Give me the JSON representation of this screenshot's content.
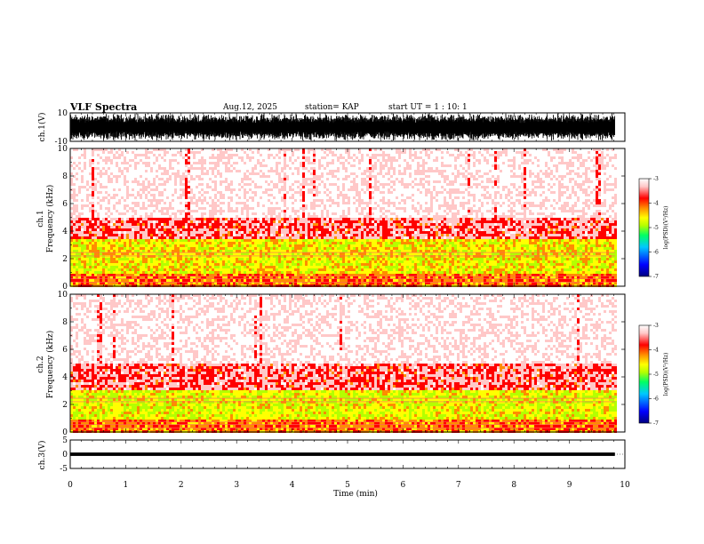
{
  "header": {
    "title": "VLF Spectra",
    "date": "Aug.12, 2025",
    "station": "station= KAP",
    "start": "start  UT =   1 : 10: 1"
  },
  "colorbar": {
    "label": "log(PSD)(V²/Hz)",
    "ticks": [
      "-3",
      "-4",
      "-5",
      "-6",
      "-7"
    ],
    "range": [
      -7,
      -3
    ],
    "colors": [
      "#000080",
      "#0000ff",
      "#00c8ff",
      "#00ff64",
      "#b4ff00",
      "#ffff00",
      "#ff8c00",
      "#ff0000",
      "#ffc8c8",
      "#ffffff"
    ]
  },
  "chart_data": [
    {
      "type": "line",
      "name": "ch1-waveform",
      "ylabel": "ch.1(V)",
      "ylim": [
        -10,
        10
      ],
      "yticks": [
        "10",
        "-10"
      ],
      "xlim": [
        0,
        10
      ],
      "data_extent": [
        0,
        9.82
      ],
      "description_values": {
        "mean": 0,
        "typical_min": -10,
        "typical_max": 10
      }
    },
    {
      "type": "heatmap",
      "name": "ch1-spectrogram",
      "ylabel_top": "ch.1",
      "ylabel": "Frequency  (kHz)",
      "ylim": [
        0,
        10
      ],
      "yticks": [
        "0",
        "2",
        "4",
        "6",
        "8",
        "10"
      ],
      "xlim": [
        0,
        10
      ],
      "data_extent": [
        0,
        9.82
      ],
      "bands": [
        {
          "f_low": 0,
          "f_high": 1,
          "log_psd": -4.3
        },
        {
          "f_low": 1,
          "f_high": 3.5,
          "log_psd": -4.8
        },
        {
          "f_low": 3.5,
          "f_high": 5,
          "log_psd": -3.8
        },
        {
          "f_low": 5,
          "f_high": 10,
          "log_psd": -3.3
        }
      ]
    },
    {
      "type": "heatmap",
      "name": "ch2-spectrogram",
      "ylabel_top": "ch.2",
      "ylabel": "Frequency  (kHz)",
      "ylim": [
        0,
        10
      ],
      "yticks": [
        "0",
        "2",
        "4",
        "6",
        "8",
        "10"
      ],
      "xlim": [
        0,
        10
      ],
      "data_extent": [
        0,
        9.82
      ],
      "bands": [
        {
          "f_low": 0,
          "f_high": 1,
          "log_psd": -4.3
        },
        {
          "f_low": 1,
          "f_high": 3.2,
          "log_psd": -4.9
        },
        {
          "f_low": 3.2,
          "f_high": 5,
          "log_psd": -3.8
        },
        {
          "f_low": 5,
          "f_high": 10,
          "log_psd": -3.3
        }
      ]
    },
    {
      "type": "line",
      "name": "ch3-waveform",
      "ylabel": "ch.3(V)",
      "ylim": [
        -5,
        5
      ],
      "yticks": [
        "5",
        "0",
        "-5"
      ],
      "xlim": [
        0,
        10
      ],
      "data_extent": [
        0,
        9.82
      ],
      "level": 0,
      "amplitude": 0.6
    }
  ],
  "xaxis": {
    "label": "Time  (min)",
    "ticks": [
      "0",
      "1",
      "2",
      "3",
      "4",
      "5",
      "6",
      "7",
      "8",
      "9",
      "10"
    ]
  }
}
